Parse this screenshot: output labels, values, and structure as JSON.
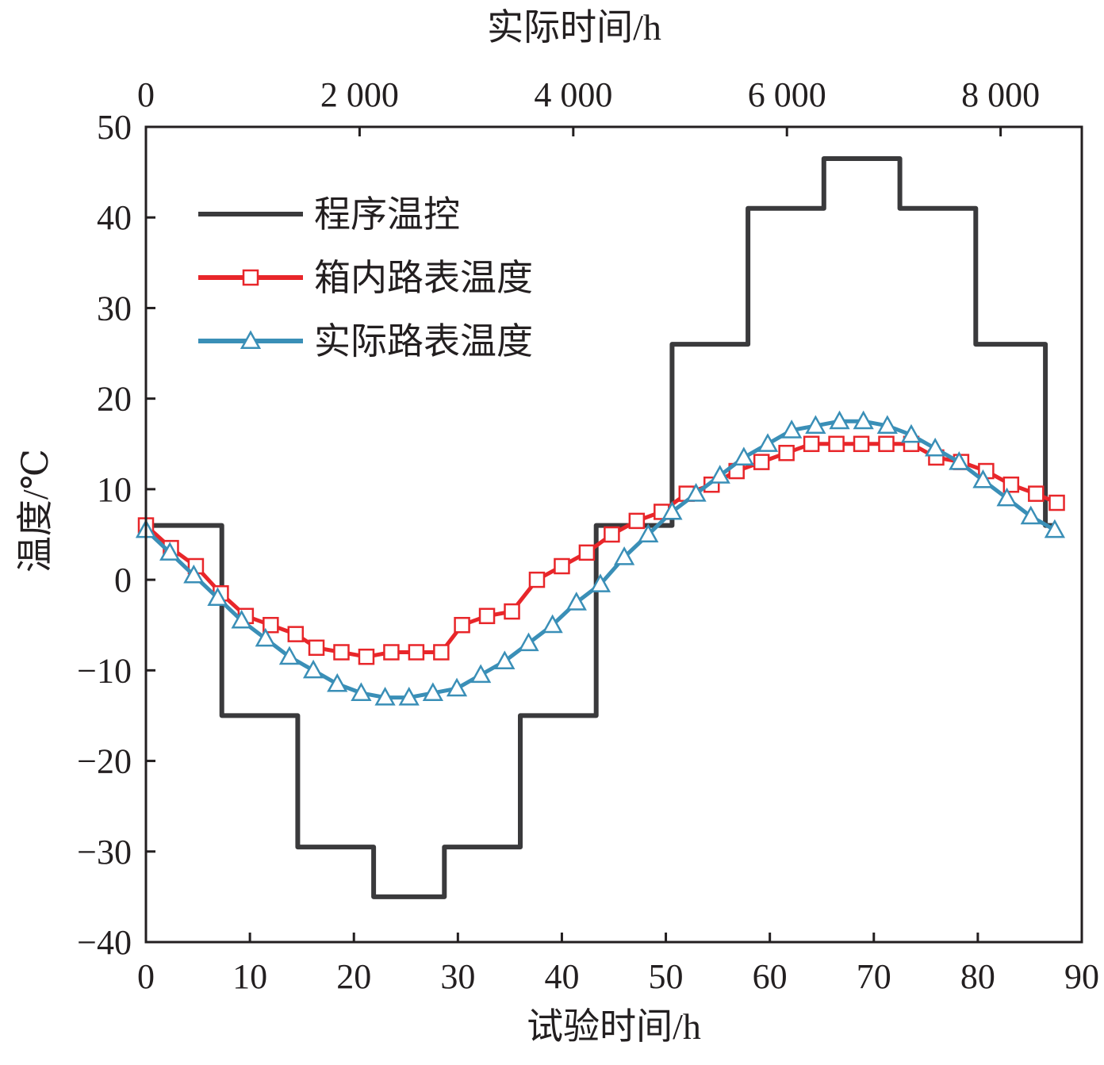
{
  "chart_data": {
    "type": "line",
    "xlabel": "试验时间/h",
    "x2label": "实际时间/h",
    "ylabel": "温度/℃",
    "xlim": [
      0,
      90
    ],
    "ylim": [
      -40,
      50
    ],
    "x2lim": [
      0,
      8760
    ],
    "xticks": [
      0,
      10,
      20,
      30,
      40,
      50,
      60,
      70,
      80,
      90
    ],
    "x_tick_labels": [
      "0",
      "10",
      "20",
      "30",
      "40",
      "50",
      "60",
      "70",
      "80",
      "90"
    ],
    "x2ticks": [
      0,
      2000,
      4000,
      6000,
      8000
    ],
    "x2_tick_labels": [
      "0",
      "2 000",
      "4 000",
      "6 000",
      "8 000"
    ],
    "yticks": [
      -40,
      -30,
      -20,
      -10,
      0,
      10,
      20,
      30,
      40,
      50
    ],
    "y_tick_labels": [
      "−40",
      "−30",
      "−20",
      "−10",
      "0",
      "10",
      "20",
      "30",
      "40",
      "50"
    ],
    "grid": false,
    "legend_position": "top-left",
    "series": [
      {
        "name": "程序温控",
        "color": "#3a3a3c",
        "marker": "none",
        "step": true,
        "x": [
          0,
          7.3,
          7.3,
          14.6,
          14.6,
          21.9,
          21.9,
          28.7,
          28.7,
          36.0,
          36.0,
          43.3,
          43.3,
          50.6,
          50.6,
          57.9,
          57.9,
          65.2,
          65.2,
          72.5,
          72.5,
          79.8,
          79.8,
          86.5,
          86.5,
          87.5
        ],
        "y": [
          6,
          6,
          -15,
          -15,
          -29.5,
          -29.5,
          -35,
          -35,
          -29.5,
          -29.5,
          -15,
          -15,
          6,
          6,
          26,
          26,
          41,
          41,
          46.5,
          46.5,
          41,
          41,
          26,
          26,
          6,
          6
        ]
      },
      {
        "name": "箱内路表温度",
        "color": "#e8262a",
        "marker": "square",
        "x": [
          0,
          2.4,
          4.8,
          7.2,
          9.6,
          12.0,
          14.4,
          16.4,
          18.8,
          21.2,
          23.6,
          26.0,
          28.4,
          30.4,
          32.8,
          35.2,
          37.6,
          40.0,
          42.4,
          44.8,
          47.2,
          49.6,
          52.0,
          54.4,
          56.8,
          59.2,
          61.6,
          64.0,
          66.4,
          68.8,
          71.2,
          73.6,
          76.0,
          78.4,
          80.8,
          83.2,
          85.6,
          87.6
        ],
        "y": [
          6,
          3.5,
          1.5,
          -1.5,
          -4,
          -5,
          -6,
          -7.5,
          -8,
          -8.5,
          -8,
          -8,
          -8,
          -5,
          -4,
          -3.5,
          0,
          1.5,
          3,
          5,
          6.5,
          7.5,
          9.5,
          10.5,
          12,
          13,
          14,
          15,
          15,
          15,
          15,
          15,
          13.5,
          13,
          12,
          10.5,
          9.5,
          8.5
        ]
      },
      {
        "name": "实际路表温度",
        "color": "#3a8fb7",
        "marker": "triangle",
        "x": [
          0,
          2.3,
          4.6,
          6.9,
          9.2,
          11.5,
          13.8,
          16.1,
          18.4,
          20.7,
          23.0,
          25.3,
          27.6,
          29.9,
          32.2,
          34.5,
          36.8,
          39.1,
          41.4,
          43.7,
          46.0,
          48.3,
          50.6,
          52.9,
          55.2,
          57.5,
          59.8,
          62.1,
          64.4,
          66.7,
          69.0,
          71.3,
          73.6,
          75.9,
          78.2,
          80.5,
          82.8,
          85.1,
          87.4
        ],
        "y": [
          5.5,
          3,
          0.5,
          -2,
          -4.5,
          -6.5,
          -8.5,
          -10,
          -11.5,
          -12.5,
          -13,
          -13,
          -12.5,
          -12,
          -10.5,
          -9,
          -7,
          -5,
          -2.5,
          -0.5,
          2.5,
          5,
          7.5,
          9.5,
          11.5,
          13.5,
          15,
          16.5,
          17,
          17.5,
          17.5,
          17,
          16,
          14.5,
          13,
          11,
          9,
          7,
          5.5
        ]
      }
    ]
  }
}
